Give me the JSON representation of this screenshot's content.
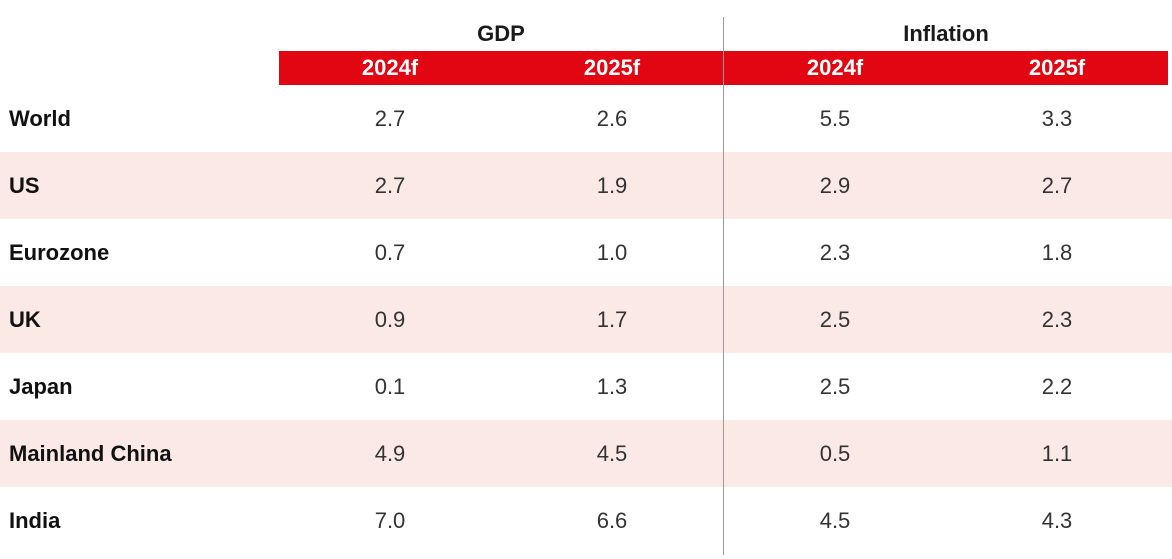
{
  "chart_data": {
    "type": "table",
    "column_groups": [
      {
        "label": "GDP",
        "years": [
          "2024f",
          "2025f"
        ]
      },
      {
        "label": "Inflation",
        "years": [
          "2024f",
          "2025f"
        ]
      }
    ],
    "rows": [
      {
        "label": "World",
        "values": [
          "2.7",
          "2.6",
          "5.5",
          "3.3"
        ]
      },
      {
        "label": "US",
        "values": [
          "2.7",
          "1.9",
          "2.9",
          "2.7"
        ]
      },
      {
        "label": "Eurozone",
        "values": [
          "0.7",
          "1.0",
          "2.3",
          "1.8"
        ]
      },
      {
        "label": "UK",
        "values": [
          "0.9",
          "1.7",
          "2.5",
          "2.3"
        ]
      },
      {
        "label": "Japan",
        "values": [
          "0.1",
          "1.3",
          "2.5",
          "2.2"
        ]
      },
      {
        "label": "Mainland China",
        "values": [
          "4.9",
          "4.5",
          "0.5",
          "1.1"
        ]
      },
      {
        "label": "India",
        "values": [
          "7.0",
          "6.6",
          "4.5",
          "4.3"
        ]
      }
    ],
    "colors": {
      "header_band": "#e20612",
      "header_text": "#ffffff",
      "row_shade": "#fbe9e6"
    }
  }
}
